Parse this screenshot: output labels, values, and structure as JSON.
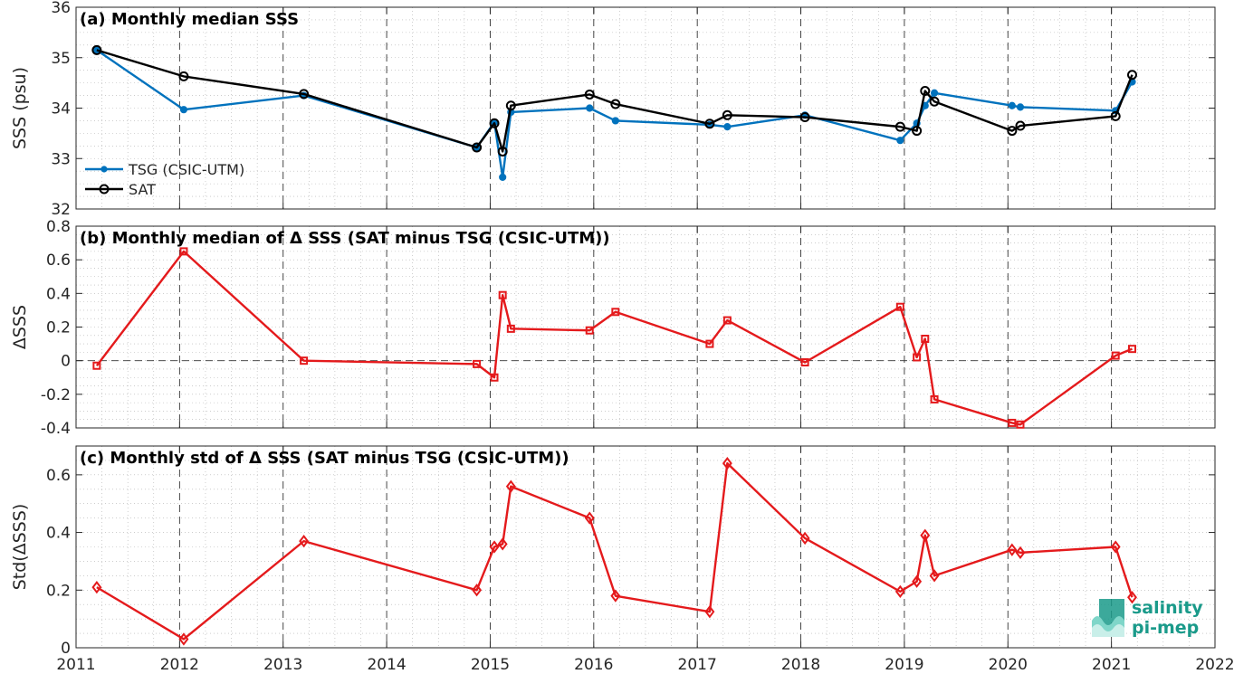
{
  "colors": {
    "tsg": "#0072BD",
    "sat": "#000000",
    "delta": "#E41A1C",
    "axis": "#262626",
    "grid": "#B0B0B0"
  },
  "logo": {
    "line1": "salinity",
    "line2": "pi-mep",
    "color": "#1a9a8a"
  },
  "x_tick_labels": [
    "2011",
    "2012",
    "2013",
    "2014",
    "2015",
    "2016",
    "2017",
    "2018",
    "2019",
    "2020",
    "2021",
    "2022"
  ],
  "chart_data": [
    {
      "type": "line",
      "title": "(a) Monthly median SSS",
      "ylabel": "SSS (psu)",
      "xlim": [
        2011,
        2022
      ],
      "ylim": [
        32,
        36
      ],
      "yticks": [
        32,
        33,
        34,
        35,
        36
      ],
      "grid": true,
      "legend": "bottom-left",
      "series": [
        {
          "name": "TSG (CSIC-UTM)",
          "marker": "dot",
          "x": [
            2011.2,
            2012.04,
            2013.2,
            2014.87,
            2015.04,
            2015.12,
            2015.2,
            2015.96,
            2016.21,
            2017.12,
            2017.29,
            2018.04,
            2018.96,
            2019.12,
            2019.2,
            2019.29,
            2020.04,
            2020.12,
            2021.04,
            2021.2
          ],
          "y": [
            35.15,
            33.97,
            34.25,
            33.22,
            33.72,
            32.63,
            33.92,
            34.0,
            33.75,
            33.67,
            33.63,
            33.86,
            33.36,
            33.7,
            34.05,
            34.3,
            34.05,
            34.02,
            33.95,
            34.52
          ]
        },
        {
          "name": "SAT",
          "marker": "circle",
          "x": [
            2011.2,
            2012.04,
            2013.2,
            2014.87,
            2015.04,
            2015.12,
            2015.2,
            2015.96,
            2016.21,
            2017.12,
            2017.29,
            2018.04,
            2018.96,
            2019.12,
            2019.2,
            2019.29,
            2020.04,
            2020.12,
            2021.04,
            2021.2
          ],
          "y": [
            35.15,
            34.63,
            34.28,
            33.22,
            33.7,
            33.14,
            34.05,
            34.27,
            34.08,
            33.69,
            33.86,
            33.82,
            33.63,
            33.55,
            34.34,
            34.13,
            33.55,
            33.65,
            33.84,
            34.66
          ]
        }
      ]
    },
    {
      "type": "line",
      "title": "(b) Monthly median of Δ SSS (SAT minus TSG (CSIC-UTM))",
      "ylabel": "ΔSSS",
      "xlim": [
        2011,
        2022
      ],
      "ylim": [
        -0.4,
        0.8
      ],
      "yticks": [
        -0.4,
        -0.2,
        0,
        0.2,
        0.4,
        0.6,
        0.8
      ],
      "ytick_labels": [
        "-0.4",
        "-0.2",
        "0",
        "0.2",
        "0.4",
        "0.6",
        "0.8"
      ],
      "grid": true,
      "zero_line": true,
      "series": [
        {
          "name": "",
          "marker": "square",
          "x": [
            2011.2,
            2012.04,
            2013.2,
            2014.87,
            2015.04,
            2015.12,
            2015.2,
            2015.96,
            2016.21,
            2017.12,
            2017.29,
            2018.04,
            2018.96,
            2019.12,
            2019.2,
            2019.29,
            2020.04,
            2020.12,
            2021.04,
            2021.2
          ],
          "y": [
            -0.03,
            0.65,
            0.0,
            -0.02,
            -0.1,
            0.39,
            0.19,
            0.18,
            0.29,
            0.1,
            0.24,
            -0.01,
            0.32,
            0.02,
            0.13,
            -0.23,
            -0.37,
            -0.38,
            0.03,
            0.07
          ]
        }
      ]
    },
    {
      "type": "line",
      "title": "(c) Monthly std of Δ SSS (SAT minus TSG (CSIC-UTM))",
      "ylabel": "Std(ΔSSS)",
      "xlim": [
        2011,
        2022
      ],
      "ylim": [
        0,
        0.7
      ],
      "yticks": [
        0,
        0.2,
        0.4,
        0.6
      ],
      "ytick_labels": [
        "0",
        "0.2",
        "0.4",
        "0.6"
      ],
      "grid": true,
      "series": [
        {
          "name": "",
          "marker": "diamond",
          "x": [
            2011.2,
            2012.04,
            2013.2,
            2014.87,
            2015.04,
            2015.12,
            2015.2,
            2015.96,
            2016.21,
            2017.12,
            2017.29,
            2018.04,
            2018.96,
            2019.12,
            2019.2,
            2019.29,
            2020.04,
            2020.12,
            2021.04,
            2021.2
          ],
          "y": [
            0.21,
            0.03,
            0.37,
            0.2,
            0.35,
            0.36,
            0.56,
            0.45,
            0.18,
            0.125,
            0.64,
            0.38,
            0.195,
            0.23,
            0.39,
            0.25,
            0.34,
            0.33,
            0.35,
            0.175
          ]
        }
      ]
    }
  ]
}
